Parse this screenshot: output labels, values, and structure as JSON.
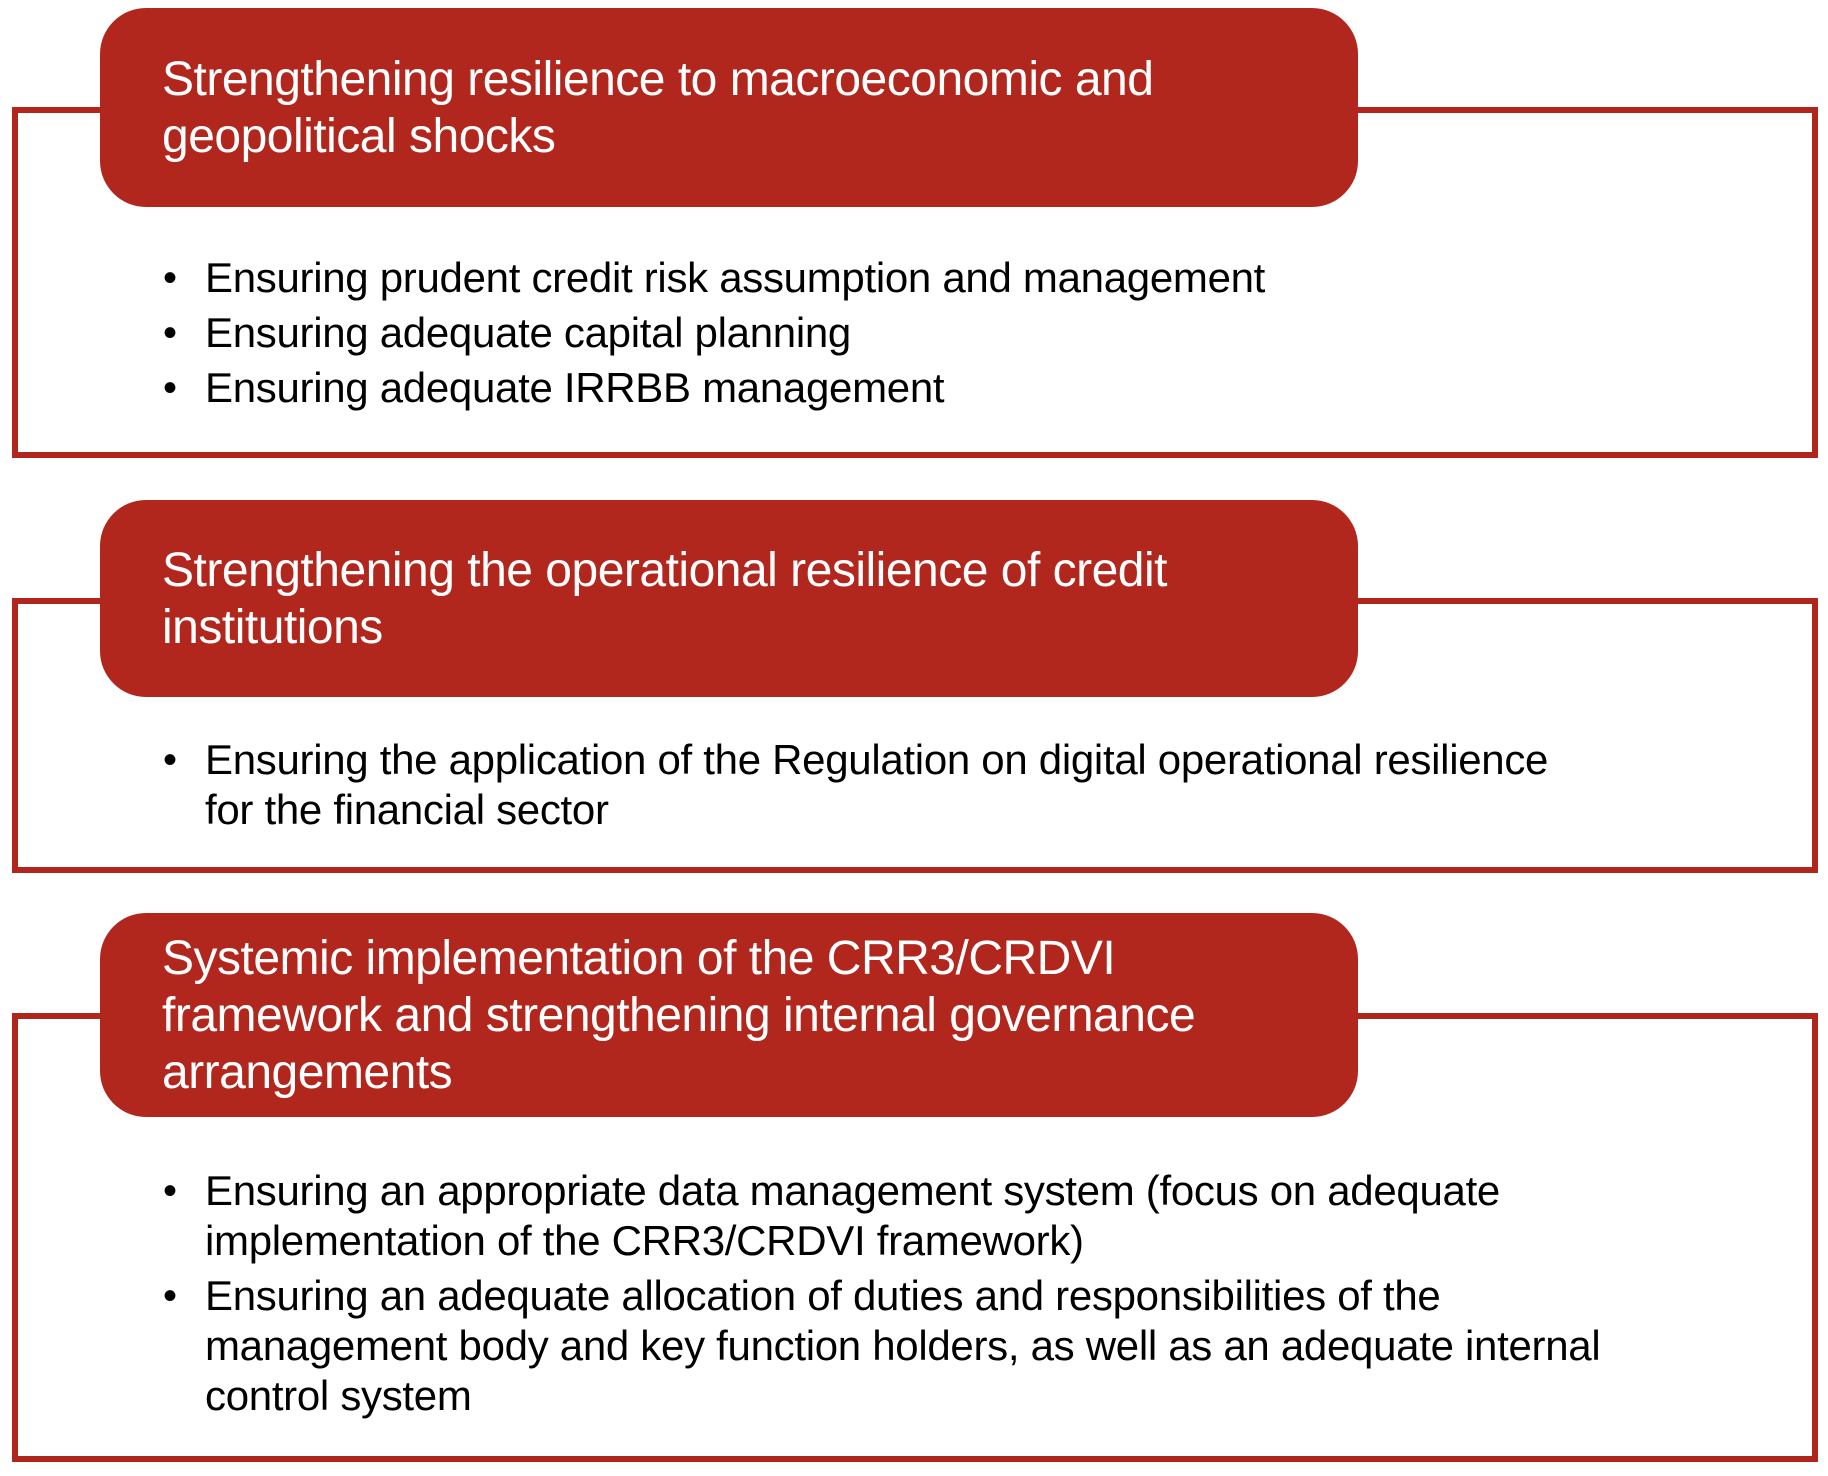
{
  "colors": {
    "accent_fill": "#B2271D",
    "box_border": "#B0261C",
    "header_text": "#FFFFFF",
    "body_text": "#000000",
    "background": "#FFFFFF"
  },
  "bullet_glyph": "•",
  "sections": [
    {
      "title": "Strengthening resilience to macroeconomic and\ngeopolitical shocks",
      "bullets": [
        "Ensuring prudent credit risk assumption and management",
        "Ensuring adequate capital planning",
        "Ensuring adequate IRRBB management"
      ]
    },
    {
      "title": "Strengthening the operational resilience of credit\ninstitutions",
      "bullets": [
        "Ensuring the application of the Regulation on digital operational resilience\nfor the financial sector"
      ]
    },
    {
      "title": "Systemic implementation of the CRR3/CRDVI\nframework and strengthening internal governance\narrangements",
      "bullets": [
        "Ensuring an appropriate data management system (focus on adequate\nimplementation of the CRR3/CRDVI framework)",
        "Ensuring an adequate allocation of duties and responsibilities of the\nmanagement body and key function holders, as well as an adequate internal\ncontrol system"
      ]
    }
  ]
}
